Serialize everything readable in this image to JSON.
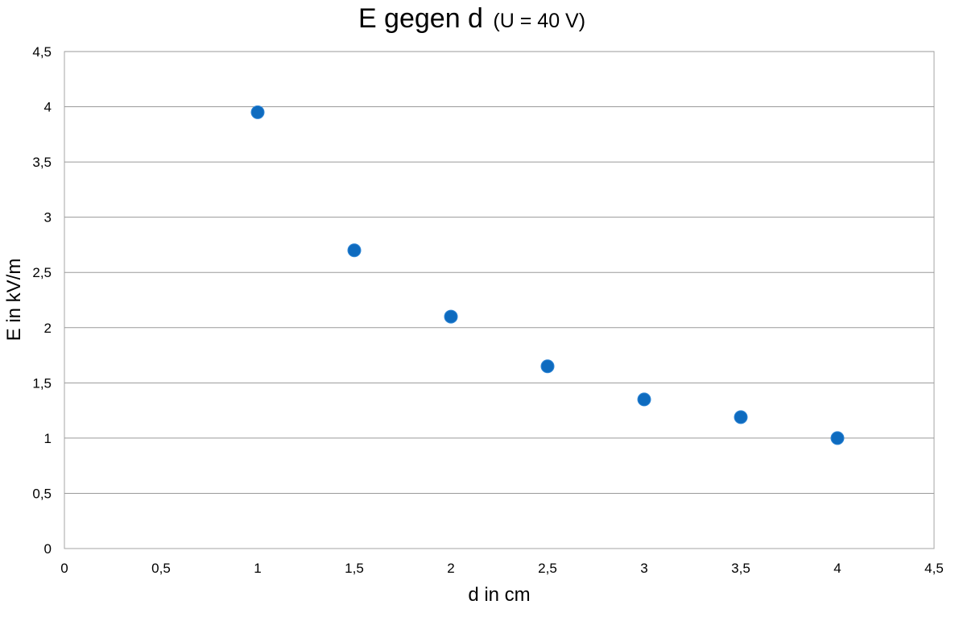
{
  "chart_data": {
    "type": "scatter",
    "title": "E gegen d",
    "subtitle": "(U = 40 V)",
    "xlabel": "d in cm",
    "ylabel": "E in kV/m",
    "xlim": [
      0,
      4.5
    ],
    "ylim": [
      0,
      4.5
    ],
    "x_ticks": [
      "0",
      "0,5",
      "1",
      "1,5",
      "2",
      "2,5",
      "3",
      "3,5",
      "4",
      "4,5"
    ],
    "y_ticks": [
      "0",
      "0,5",
      "1",
      "1,5",
      "2",
      "2,5",
      "3",
      "3,5",
      "4",
      "4,5"
    ],
    "grid": "horizontal",
    "legend": "none",
    "marker_color": "#0e6bbf",
    "series": [
      {
        "x": [
          1,
          1.5,
          2,
          2.5,
          3,
          3.5,
          4
        ],
        "y": [
          3.95,
          2.7,
          2.1,
          1.65,
          1.35,
          1.19,
          1.0
        ]
      }
    ]
  }
}
